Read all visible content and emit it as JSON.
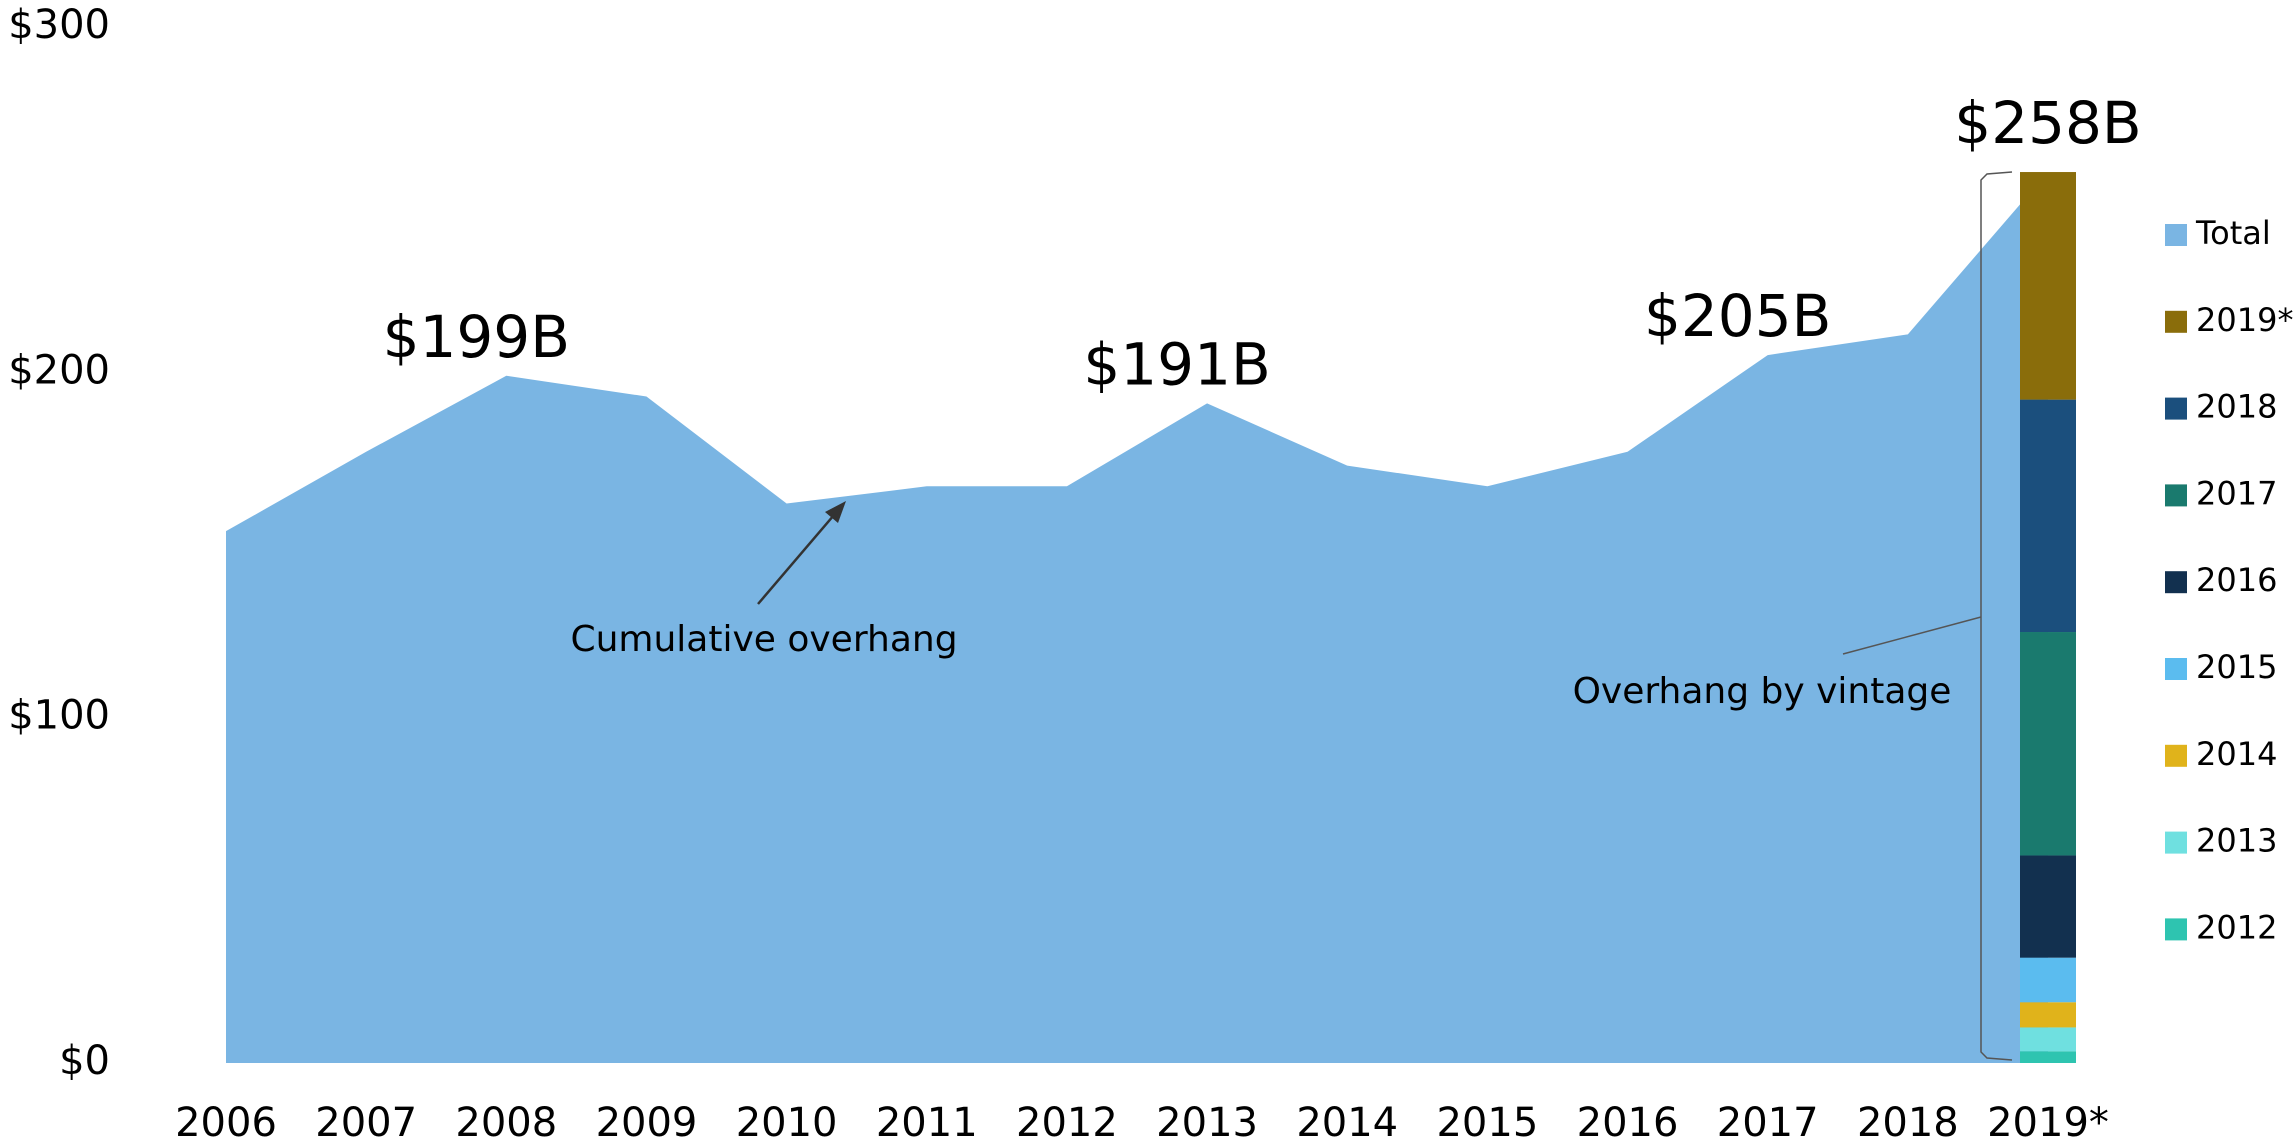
{
  "chart_data": {
    "type": "area",
    "categories": [
      "2006",
      "2007",
      "2008",
      "2009",
      "2010",
      "2011",
      "2012",
      "2013",
      "2014",
      "2015",
      "2016",
      "2017",
      "2018",
      "2019*"
    ],
    "series": [
      {
        "name": "Total",
        "color": "#7ab5e3",
        "values": [
          154,
          177,
          199,
          193,
          162,
          167,
          167,
          191,
          173,
          167,
          177,
          205,
          211,
          258
        ],
        "value_labels": [
          null,
          null,
          "$199B",
          null,
          null,
          null,
          null,
          "$191B",
          null,
          null,
          null,
          "$205B",
          null,
          "$258B"
        ]
      },
      {
        "name": "2019*",
        "color": "#8a6d0b",
        "values": [
          null,
          null,
          null,
          null,
          null,
          null,
          null,
          null,
          null,
          null,
          null,
          null,
          null,
          65.9
        ]
      },
      {
        "name": "2018",
        "color": "#1b4f7d",
        "values": [
          null,
          null,
          null,
          null,
          null,
          null,
          null,
          null,
          null,
          null,
          null,
          null,
          null,
          67.3
        ]
      },
      {
        "name": "2017",
        "color": "#1a7a6e",
        "values": [
          null,
          null,
          null,
          null,
          null,
          null,
          null,
          null,
          null,
          null,
          null,
          null,
          null,
          64.7
        ]
      },
      {
        "name": "2016",
        "color": "#12304f",
        "values": [
          null,
          null,
          null,
          null,
          null,
          null,
          null,
          null,
          null,
          null,
          null,
          null,
          null,
          29.6
        ]
      },
      {
        "name": "2015",
        "color": "#5bbcef",
        "values": [
          null,
          null,
          null,
          null,
          null,
          null,
          null,
          null,
          null,
          null,
          null,
          null,
          null,
          12.9
        ]
      },
      {
        "name": "2014",
        "color": "#e0b31b",
        "values": [
          null,
          null,
          null,
          null,
          null,
          null,
          null,
          null,
          null,
          null,
          null,
          null,
          null,
          7.3
        ]
      },
      {
        "name": "2013",
        "color": "#6fe0e0",
        "values": [
          null,
          null,
          null,
          null,
          null,
          null,
          null,
          null,
          null,
          null,
          null,
          null,
          null,
          6.9
        ]
      },
      {
        "name": "2012",
        "color": "#2ec4b0",
        "values": [
          null,
          null,
          null,
          null,
          null,
          null,
          null,
          null,
          null,
          null,
          null,
          null,
          null,
          3.4
        ]
      }
    ],
    "annotations": [
      "Cumulative overhang",
      "Overhang by vintage"
    ],
    "ylim": [
      0,
      300
    ],
    "yticks": [
      {
        "value": 0,
        "label": "$0"
      },
      {
        "value": 100,
        "label": "$100"
      },
      {
        "value": 200,
        "label": "$200"
      },
      {
        "value": 300,
        "label": "$300"
      }
    ],
    "legend": "right"
  }
}
